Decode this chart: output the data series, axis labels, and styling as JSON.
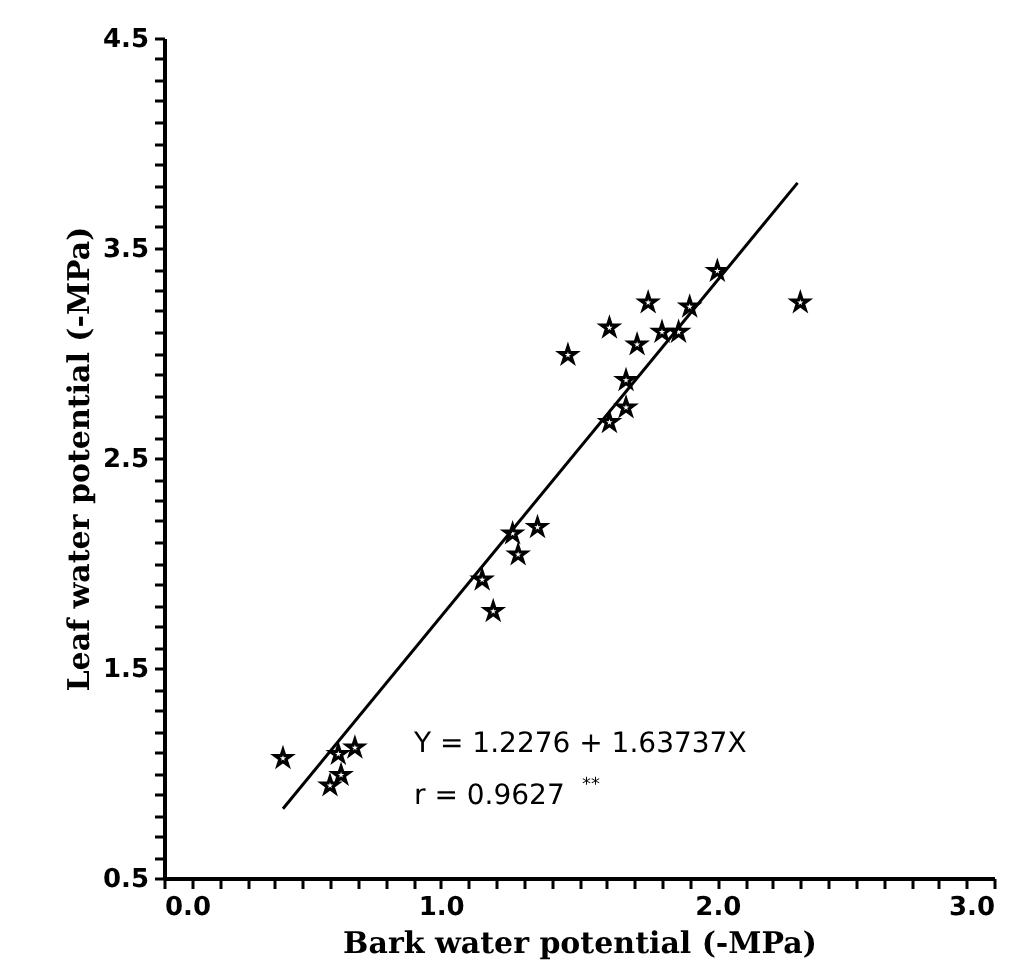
{
  "chart_data": {
    "type": "scatter",
    "xlabel": "Bark water potential  (-MPa)",
    "ylabel": "Leaf water potential  (-MPa)",
    "xlim": [
      0.0,
      3.0
    ],
    "ylim": [
      0.5,
      4.5
    ],
    "xticks": [
      {
        "value": 0,
        "label": "0.0"
      },
      {
        "value": 0.1,
        "label": null
      },
      {
        "value": 0.2,
        "label": null
      },
      {
        "value": 0.3,
        "label": null
      },
      {
        "value": 0.4,
        "label": null
      },
      {
        "value": 0.5,
        "label": null
      },
      {
        "value": 0.6,
        "label": null
      },
      {
        "value": 0.7,
        "label": null
      },
      {
        "value": 0.8,
        "label": null
      },
      {
        "value": 0.9,
        "label": null
      },
      {
        "value": 1,
        "label": "1.0"
      },
      {
        "value": 1.1,
        "label": null
      },
      {
        "value": 1.2,
        "label": null
      },
      {
        "value": 1.3,
        "label": null
      },
      {
        "value": 1.4,
        "label": null
      },
      {
        "value": 1.5,
        "label": null
      },
      {
        "value": 1.6,
        "label": null
      },
      {
        "value": 1.7,
        "label": null
      },
      {
        "value": 1.8,
        "label": null
      },
      {
        "value": 1.9,
        "label": null
      },
      {
        "value": 2,
        "label": "2.0"
      },
      {
        "value": 2.1,
        "label": null
      },
      {
        "value": 2.2,
        "label": null
      },
      {
        "value": 2.3,
        "label": null
      },
      {
        "value": 2.4,
        "label": null
      },
      {
        "value": 2.5,
        "label": null
      },
      {
        "value": 2.6,
        "label": null
      },
      {
        "value": 2.7,
        "label": null
      },
      {
        "value": 2.8,
        "label": null
      },
      {
        "value": 2.9,
        "label": null
      },
      {
        "value": 3,
        "label": "3.0"
      }
    ],
    "yticks": [
      0.5,
      {
        "value": 0.6,
        "label": null
      },
      {
        "value": 0.7,
        "label": null
      },
      {
        "value": 0.8,
        "label": null
      },
      {
        "value": 0.9,
        "label": null
      },
      {
        "value": 1.0,
        "label": null
      },
      {
        "value": 1.1,
        "label": null
      },
      {
        "value": 1.2,
        "label": null
      },
      {
        "value": 1.3,
        "label": null
      },
      {
        "value": 1.4,
        "label": null
      },
      1.5,
      {
        "value": 1.6,
        "label": null
      },
      {
        "value": 1.7,
        "label": null
      },
      {
        "value": 1.8,
        "label": null
      },
      {
        "value": 1.9,
        "label": null
      },
      {
        "value": 2.0,
        "label": null
      },
      {
        "value": 2.1,
        "label": null
      },
      {
        "value": 2.2,
        "label": null
      },
      {
        "value": 2.3,
        "label": null
      },
      {
        "value": 2.4,
        "label": null
      },
      2.5,
      {
        "value": 2.6,
        "label": null
      },
      {
        "value": 2.7,
        "label": null
      },
      {
        "value": 2.8,
        "label": null
      },
      {
        "value": 2.9,
        "label": null
      },
      {
        "value": 3.0,
        "label": null
      },
      {
        "value": 3.1,
        "label": null
      },
      {
        "value": 3.2,
        "label": null
      },
      {
        "value": 3.3,
        "label": null
      },
      {
        "value": 3.4,
        "label": null
      },
      3.5,
      {
        "value": 3.6,
        "label": null
      },
      {
        "value": 3.7,
        "label": null
      },
      {
        "value": 3.8,
        "label": null
      },
      {
        "value": 3.9,
        "label": null
      },
      {
        "value": 4.0,
        "label": null
      },
      {
        "value": 4.1,
        "label": null
      },
      {
        "value": 4.2,
        "label": null
      },
      {
        "value": 4.3,
        "label": null
      },
      {
        "value": 4.4,
        "label": null
      },
      4.5
    ],
    "marker": "star",
    "grid": false,
    "series": [
      {
        "color": "#000000",
        "x": [
          0.43,
          0.6,
          0.64,
          0.63,
          0.69,
          1.19,
          1.15,
          1.28,
          1.26,
          1.35,
          1.46,
          1.61,
          1.75,
          1.71,
          1.9,
          1.8,
          1.86,
          2.0,
          2.3,
          1.67,
          1.67,
          1.61
        ],
        "values": [
          1.07,
          0.94,
          0.99,
          1.09,
          1.12,
          1.77,
          1.92,
          2.04,
          2.14,
          2.17,
          2.99,
          3.12,
          3.24,
          3.04,
          3.22,
          3.1,
          3.1,
          3.39,
          3.24,
          2.87,
          2.74,
          2.67
        ]
      },
      {
        "type": "line",
        "color": "#000000",
        "marker": "none",
        "x": [
          0.43,
          2.29
        ],
        "values": [
          0.83,
          3.81
        ]
      }
    ],
    "annotations": [
      "Y = 1.2276 + 1.63737X",
      "r = 0.9627$^{**}$"
    ]
  }
}
